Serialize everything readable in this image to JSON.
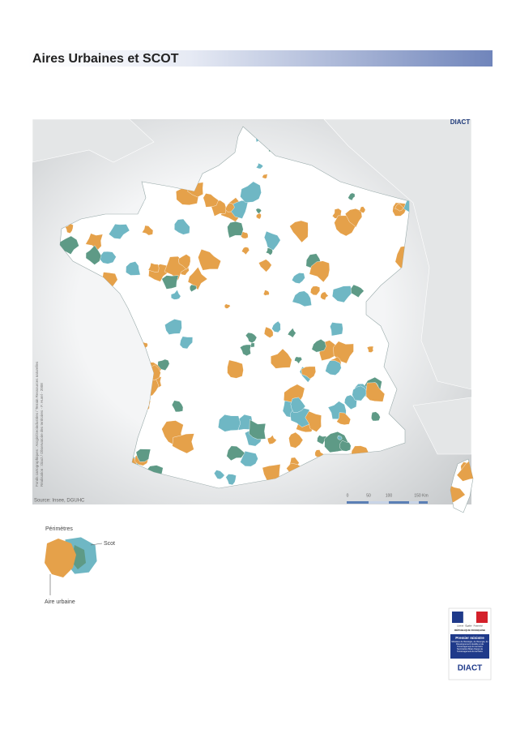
{
  "header": {
    "title": "Aires Urbaines et SCOT"
  },
  "map": {
    "logo": "DIACT",
    "credits": [
      "Fonds cartographiques : Arcgis/Geoindustries / Terrain Ressources naturelles",
      "Réalisation : Diact / Observatoire des territoires - F. Hurel - 2008"
    ],
    "source": "Source: Insee, DGUHC",
    "scale": [
      "0",
      "50",
      "100",
      "150 Km"
    ]
  },
  "legend": {
    "heading": "Périmètres",
    "scot": "Scot",
    "urban_area": "Aire urbaine"
  },
  "footer_logo": {
    "motto": "Liberté · Égalité · Fraternité",
    "republic": "RÉPUBLIQUE FRANÇAISE",
    "office": "Premier ministre",
    "ministry": "Ministère de l'Écologie, de l'Énergie, du Développement durable et de l'Aménagement du territoire",
    "secretariat": "Secrétariat d'État chargé de l'Aménagement du territoire",
    "agency": "DIACT"
  }
}
